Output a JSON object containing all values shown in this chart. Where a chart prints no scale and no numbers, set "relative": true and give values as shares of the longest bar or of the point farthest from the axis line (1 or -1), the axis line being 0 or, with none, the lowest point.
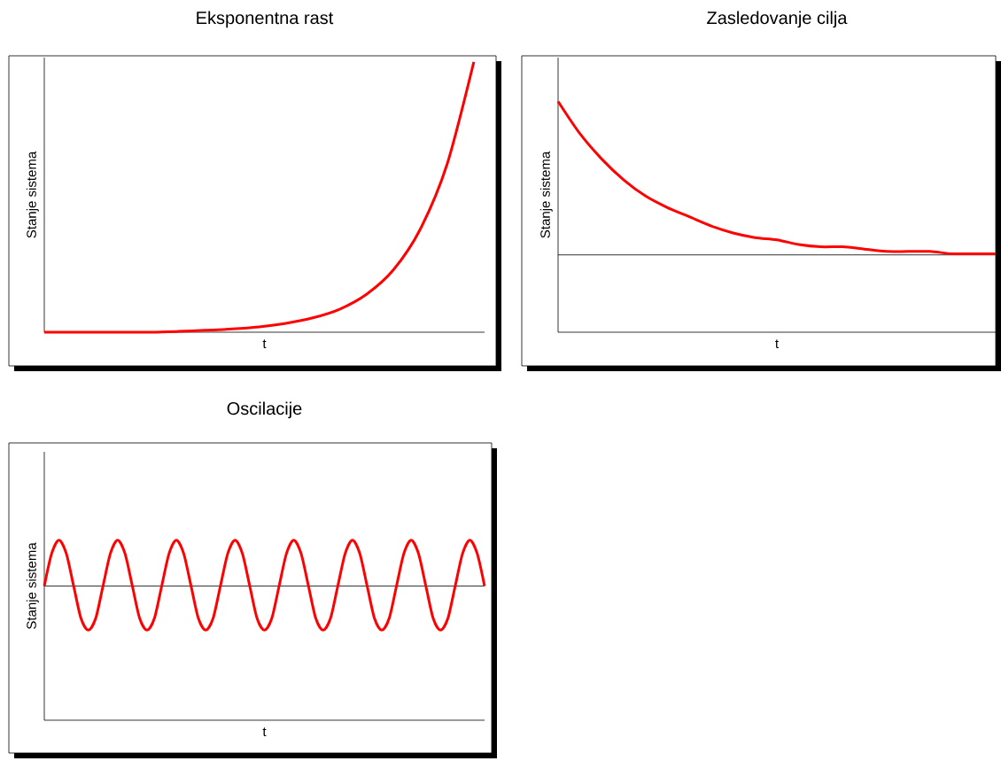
{
  "chart_data": [
    {
      "type": "line",
      "title": "Eksponentna rast",
      "xlabel": "t",
      "ylabel": "Stanje sistema",
      "relative": true,
      "tick_labels": false,
      "categories": [
        null,
        null,
        null,
        null,
        null,
        null,
        null,
        null,
        null,
        null,
        null,
        null,
        null,
        null,
        null,
        null,
        null
      ],
      "series": [
        {
          "color": "#ff0000",
          "values": [
            0,
            0,
            0,
            0,
            0,
            0.003,
            0.007,
            0.012,
            0.02,
            0.033,
            0.053,
            0.085,
            0.14,
            0.23,
            0.38,
            0.62,
            1
          ]
        }
      ]
    },
    {
      "type": "line",
      "title": "Zasledovanje cilja",
      "xlabel": "t",
      "ylabel": "Stanje sistema",
      "relative": true,
      "tick_labels": false,
      "categories": [
        null,
        null,
        null,
        null,
        null,
        null,
        null,
        null,
        null,
        null,
        null,
        null,
        null,
        null,
        null,
        null,
        null,
        null,
        null,
        null,
        null
      ],
      "series": [
        {
          "color": "#ff0000",
          "values": [
            1,
            0.86,
            0.75,
            0.66,
            0.59,
            0.54,
            0.5,
            0.46,
            0.43,
            0.41,
            0.4,
            0.38,
            0.37,
            0.37,
            0.36,
            0.35,
            0.35,
            0.35,
            0.34,
            0.34,
            0.34
          ]
        }
      ],
      "ref_lines": [
        {
          "axis": "y",
          "value": 0.335,
          "color": "#000000"
        }
      ]
    },
    {
      "type": "line",
      "title": "Oscilacije",
      "xlabel": "t",
      "ylabel": "Stanje sistema",
      "relative": true,
      "tick_labels": false,
      "categories": [
        null,
        null,
        null,
        null,
        null,
        null,
        null,
        null,
        null,
        null,
        null,
        null,
        null,
        null,
        null,
        null,
        null,
        null,
        null,
        null,
        null,
        null,
        null,
        null,
        null,
        null,
        null,
        null,
        null,
        null,
        null,
        null,
        null,
        null,
        null,
        null,
        null,
        null,
        null,
        null,
        null,
        null,
        null,
        null,
        null,
        null,
        null,
        null,
        null,
        null,
        null,
        null,
        null,
        null,
        null,
        null,
        null,
        null,
        null,
        null,
        null
      ],
      "series": [
        {
          "color": "#ff0000",
          "values": [
            0.745,
            0.925,
            1,
            0.925,
            0.745,
            0.565,
            0.5,
            0.565,
            0.745,
            0.925,
            1,
            0.925,
            0.745,
            0.565,
            0.5,
            0.565,
            0.745,
            0.925,
            1,
            0.925,
            0.745,
            0.565,
            0.5,
            0.565,
            0.745,
            0.925,
            1,
            0.925,
            0.745,
            0.565,
            0.5,
            0.565,
            0.745,
            0.925,
            1,
            0.925,
            0.745,
            0.565,
            0.5,
            0.565,
            0.745,
            0.925,
            1,
            0.925,
            0.745,
            0.565,
            0.5,
            0.565,
            0.745,
            0.925,
            1,
            0.925,
            0.745,
            0.565,
            0.5,
            0.565,
            0.745,
            0.925,
            1,
            0.925,
            0.745
          ]
        }
      ],
      "ref_lines": [
        {
          "axis": "y",
          "value": 0.745,
          "color": "#000000"
        }
      ]
    }
  ]
}
